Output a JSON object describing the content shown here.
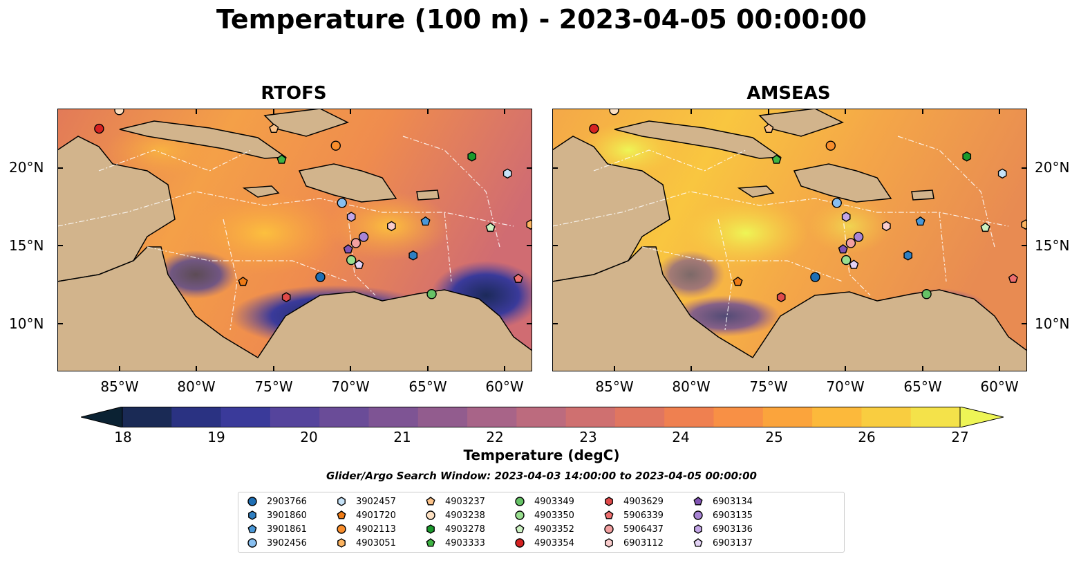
{
  "title": "Temperature (100 m) - 2023-04-05 00:00:00",
  "panels": [
    {
      "name": "rtofs",
      "title": "RTOFS"
    },
    {
      "name": "amseas",
      "title": "AMSEAS"
    }
  ],
  "axes": {
    "lon_labels": [
      "85°W",
      "80°W",
      "75°W",
      "70°W",
      "65°W",
      "60°W"
    ],
    "lat_labels": [
      "20°N",
      "15°N",
      "10°N"
    ]
  },
  "colorbar": {
    "label": "Temperature (degC)",
    "ticks": [
      "18",
      "19",
      "20",
      "21",
      "22",
      "23",
      "24",
      "25",
      "26",
      "27"
    ],
    "colors": [
      "#0b2233",
      "#1a2a55",
      "#2a3282",
      "#3a3a9a",
      "#55449c",
      "#6a4c98",
      "#7e5494",
      "#925c8e",
      "#a86488",
      "#bc6b7e",
      "#cf7070",
      "#e07660",
      "#ef8050",
      "#f89045",
      "#fba43c",
      "#fcb93b",
      "#f9cd40",
      "#f4e24a",
      "#eef556"
    ],
    "extend": "both"
  },
  "map": {
    "lon_range": [
      -89,
      -58.3
    ],
    "lat_range": [
      7,
      24
    ],
    "land_color": "#d2b48c",
    "water_color": "#93b3dc"
  },
  "search_window": "Glider/Argo Search Window: 2023-04-03 14:00:00 to 2023-04-05 00:00:00",
  "floats": [
    {
      "id": "2903766",
      "marker": "circle",
      "color": "#1f6fb4",
      "lon": -72.0,
      "lat": 13.1
    },
    {
      "id": "3901860",
      "marker": "hexagon",
      "color": "#2f7fc1",
      "lon": -66.0,
      "lat": 14.5
    },
    {
      "id": "3901861",
      "marker": "pentagon",
      "color": "#4a98d8",
      "lon": -65.2,
      "lat": 16.7
    },
    {
      "id": "3902456",
      "marker": "circle",
      "color": "#88bff0",
      "lon": -70.6,
      "lat": 17.9
    },
    {
      "id": "3902457",
      "marker": "hexagon",
      "color": "#c6e2f7",
      "lon": -59.9,
      "lat": 19.8
    },
    {
      "id": "4901720",
      "marker": "pentagon",
      "color": "#ef7b16",
      "lon": -77.0,
      "lat": 12.8
    },
    {
      "id": "4902113",
      "marker": "circle",
      "color": "#f98e2c",
      "lon": -71.0,
      "lat": 21.6
    },
    {
      "id": "4903051",
      "marker": "hexagon",
      "color": "#fbb360",
      "lon": -58.4,
      "lat": 16.5
    },
    {
      "id": "4903237",
      "marker": "pentagon",
      "color": "#fcc38a",
      "lon": -75.0,
      "lat": 22.7
    },
    {
      "id": "4903238",
      "marker": "circle",
      "color": "#fde0c2",
      "lon": -85.0,
      "lat": 23.9
    },
    {
      "id": "4903278",
      "marker": "hexagon",
      "color": "#1a9a2c",
      "lon": -62.2,
      "lat": 20.9
    },
    {
      "id": "4903333",
      "marker": "pentagon",
      "color": "#3fb444",
      "lon": -74.5,
      "lat": 20.7
    },
    {
      "id": "4903349",
      "marker": "circle",
      "color": "#66c266",
      "lon": -64.8,
      "lat": 12.0
    },
    {
      "id": "4903350",
      "marker": "circle",
      "color": "#99de8f",
      "lon": -70.0,
      "lat": 14.2
    },
    {
      "id": "4903352",
      "marker": "pentagon",
      "color": "#ccf1c2",
      "lon": -61.0,
      "lat": 16.3
    },
    {
      "id": "4903354",
      "marker": "circle",
      "color": "#d62222",
      "lon": -86.3,
      "lat": 22.7
    },
    {
      "id": "4903629",
      "marker": "hexagon",
      "color": "#e04a4a",
      "lon": -74.2,
      "lat": 11.8
    },
    {
      "id": "5906339",
      "marker": "pentagon",
      "color": "#ee6f6f",
      "lon": -59.2,
      "lat": 13.0
    },
    {
      "id": "5906437",
      "marker": "circle",
      "color": "#f2a0a0",
      "lon": -69.7,
      "lat": 15.3
    },
    {
      "id": "6903112",
      "marker": "hexagon",
      "color": "#f9cccc",
      "lon": -67.4,
      "lat": 16.4
    },
    {
      "id": "6903134",
      "marker": "pentagon",
      "color": "#8255b4",
      "lon": -70.2,
      "lat": 14.9
    },
    {
      "id": "6903135",
      "marker": "circle",
      "color": "#a884d4",
      "lon": -69.2,
      "lat": 15.7
    },
    {
      "id": "6903136",
      "marker": "hexagon",
      "color": "#c3a6e6",
      "lon": -70.0,
      "lat": 17.0
    },
    {
      "id": "6903137",
      "marker": "pentagon",
      "color": "#e3d3f5",
      "lon": -69.5,
      "lat": 13.9
    }
  ]
}
